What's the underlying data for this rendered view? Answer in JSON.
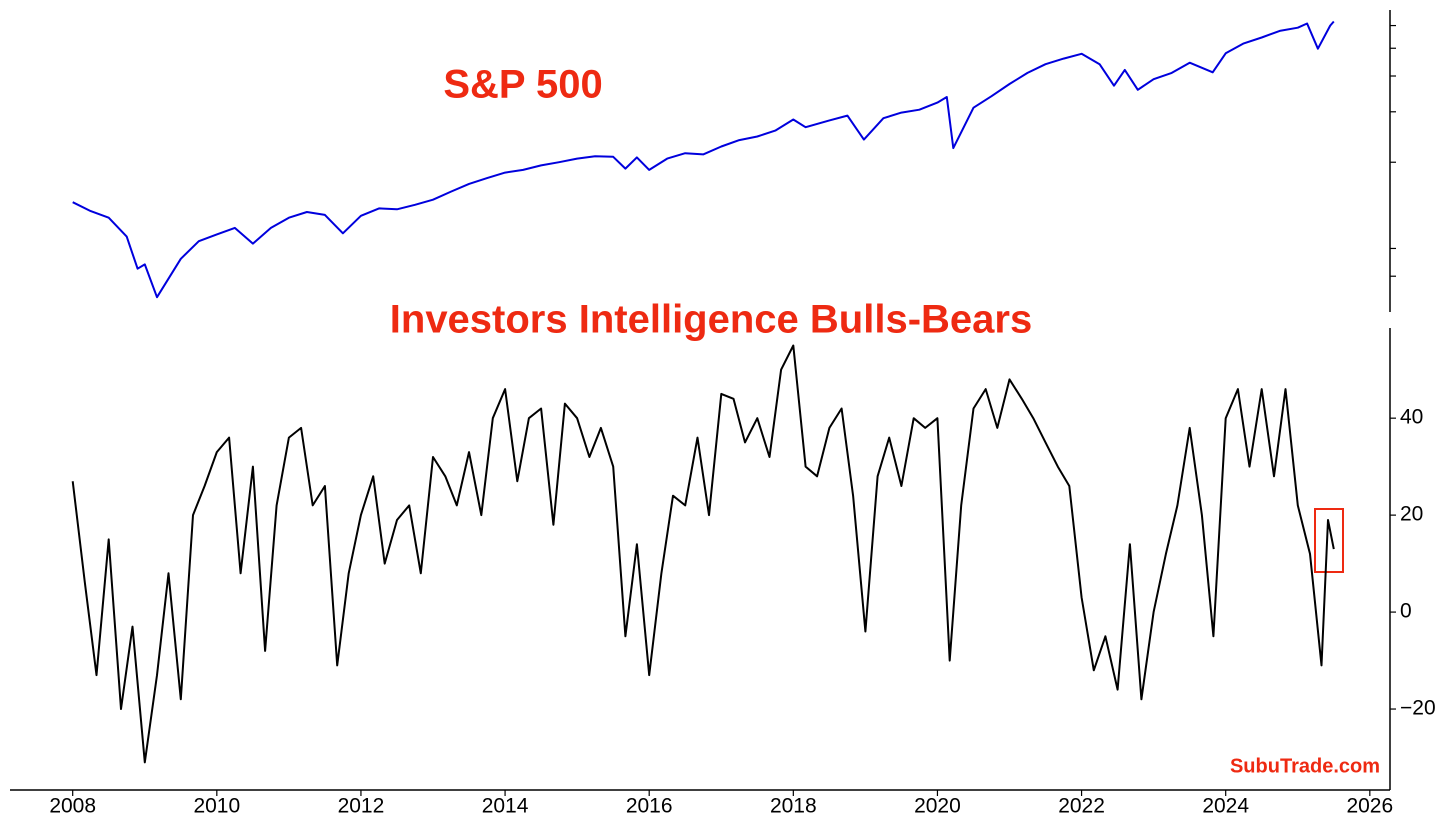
{
  "chart_data": [
    {
      "type": "line",
      "title": "S&P 500",
      "yscale": "log",
      "color": "#0000dd",
      "xlim": [
        2007.13,
        2026.28
      ],
      "ylim": [
        600,
        6800
      ],
      "yticks": [
        800,
        1000,
        2000,
        3000,
        4000,
        5000,
        6000
      ],
      "x": [
        2008.0,
        2008.25,
        2008.5,
        2008.75,
        2008.9,
        2009.0,
        2009.17,
        2009.5,
        2009.75,
        2010.0,
        2010.25,
        2010.5,
        2010.75,
        2011.0,
        2011.25,
        2011.5,
        2011.75,
        2012.0,
        2012.25,
        2012.5,
        2012.75,
        2013.0,
        2013.25,
        2013.5,
        2013.75,
        2014.0,
        2014.25,
        2014.5,
        2014.75,
        2015.0,
        2015.25,
        2015.5,
        2015.67,
        2015.83,
        2016.0,
        2016.25,
        2016.5,
        2016.75,
        2017.0,
        2017.25,
        2017.5,
        2017.75,
        2018.0,
        2018.17,
        2018.5,
        2018.75,
        2018.98,
        2019.25,
        2019.5,
        2019.75,
        2020.0,
        2020.13,
        2020.22,
        2020.5,
        2020.75,
        2021.0,
        2021.25,
        2021.5,
        2021.75,
        2022.0,
        2022.25,
        2022.45,
        2022.6,
        2022.78,
        2023.0,
        2023.25,
        2023.5,
        2023.82,
        2024.0,
        2024.25,
        2024.5,
        2024.75,
        2025.0,
        2025.13,
        2025.28,
        2025.45,
        2025.5
      ],
      "values": [
        1450,
        1350,
        1280,
        1100,
        850,
        880,
        676,
        920,
        1060,
        1120,
        1180,
        1040,
        1180,
        1280,
        1340,
        1310,
        1130,
        1300,
        1380,
        1370,
        1420,
        1480,
        1580,
        1680,
        1760,
        1840,
        1880,
        1950,
        2000,
        2060,
        2100,
        2090,
        1900,
        2080,
        1880,
        2060,
        2150,
        2130,
        2270,
        2390,
        2460,
        2580,
        2820,
        2650,
        2800,
        2910,
        2400,
        2850,
        2980,
        3050,
        3230,
        3380,
        2240,
        3100,
        3400,
        3750,
        4100,
        4400,
        4600,
        4780,
        4400,
        3700,
        4200,
        3580,
        3900,
        4100,
        4450,
        4120,
        4800,
        5200,
        5450,
        5750,
        5900,
        6100,
        4980,
        6000,
        6200
      ]
    },
    {
      "type": "line",
      "title": "Investors Intelligence Bulls-Bears",
      "annotation": "SubuTrade.com",
      "color": "#000000",
      "xlim": [
        2007.13,
        2026.28
      ],
      "xticks": [
        2008,
        2010,
        2012,
        2014,
        2016,
        2018,
        2020,
        2022,
        2024,
        2026
      ],
      "ylim": [
        -36.7,
        58.6
      ],
      "yticks": [
        {
          "value": -20,
          "label": "−20"
        },
        0,
        20,
        40
      ],
      "x": [
        2008.0,
        2008.17,
        2008.33,
        2008.5,
        2008.67,
        2008.83,
        2009.0,
        2009.17,
        2009.33,
        2009.5,
        2009.67,
        2009.83,
        2010.0,
        2010.17,
        2010.33,
        2010.5,
        2010.67,
        2010.83,
        2011.0,
        2011.17,
        2011.33,
        2011.5,
        2011.67,
        2011.83,
        2012.0,
        2012.17,
        2012.33,
        2012.5,
        2012.67,
        2012.83,
        2013.0,
        2013.17,
        2013.33,
        2013.5,
        2013.67,
        2013.83,
        2014.0,
        2014.17,
        2014.33,
        2014.5,
        2014.67,
        2014.83,
        2015.0,
        2015.17,
        2015.33,
        2015.5,
        2015.67,
        2015.83,
        2016.0,
        2016.17,
        2016.33,
        2016.5,
        2016.67,
        2016.83,
        2017.0,
        2017.17,
        2017.33,
        2017.5,
        2017.67,
        2017.83,
        2018.0,
        2018.17,
        2018.33,
        2018.5,
        2018.67,
        2018.83,
        2019.0,
        2019.17,
        2019.33,
        2019.5,
        2019.67,
        2019.83,
        2020.0,
        2020.17,
        2020.33,
        2020.5,
        2020.67,
        2020.83,
        2021.0,
        2021.17,
        2021.33,
        2021.5,
        2021.67,
        2021.83,
        2022.0,
        2022.17,
        2022.33,
        2022.5,
        2022.67,
        2022.83,
        2023.0,
        2023.17,
        2023.33,
        2023.5,
        2023.67,
        2023.83,
        2024.0,
        2024.17,
        2024.33,
        2024.5,
        2024.67,
        2024.83,
        2025.0,
        2025.17,
        2025.33,
        2025.42,
        2025.5
      ],
      "values": [
        27,
        6,
        -13,
        15,
        -20,
        -3,
        -31,
        -13,
        8,
        -18,
        20,
        26,
        33,
        36,
        8,
        30,
        -8,
        22,
        36,
        38,
        22,
        26,
        -11,
        8,
        20,
        28,
        10,
        19,
        22,
        8,
        32,
        28,
        22,
        33,
        20,
        40,
        46,
        27,
        40,
        42,
        18,
        43,
        40,
        32,
        38,
        30,
        -5,
        14,
        -13,
        8,
        24,
        22,
        36,
        20,
        45,
        44,
        35,
        40,
        32,
        50,
        55,
        30,
        28,
        38,
        42,
        24,
        -4,
        28,
        36,
        26,
        40,
        38,
        40,
        -10,
        22,
        42,
        46,
        38,
        48,
        44,
        40,
        35,
        30,
        26,
        3,
        -12,
        -5,
        -16,
        14,
        -18,
        0,
        12,
        22,
        38,
        20,
        -5,
        40,
        46,
        30,
        46,
        28,
        46,
        22,
        12,
        -11,
        19,
        13
      ]
    }
  ]
}
